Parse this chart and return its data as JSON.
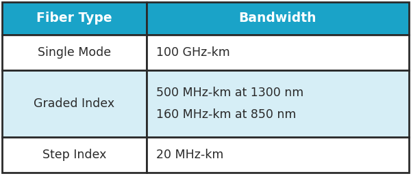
{
  "header_bg": "#1aa3c8",
  "header_text_color": "#ffffff",
  "row1_bg": "#ffffff",
  "row2_bg": "#d6eef6",
  "row3_bg": "#ffffff",
  "border_color": "#2a2a2a",
  "text_color": "#2a2a2a",
  "col1_header": "Fiber Type",
  "col2_header": "Bandwidth",
  "rows": [
    [
      "Single Mode",
      "100 GHz-km"
    ],
    [
      "Graded Index",
      "500 MHz-km at 1300 nm\n160 MHz-km at 850 nm"
    ],
    [
      "Step Index",
      "20 MHz-km"
    ]
  ],
  "col_split": 0.355,
  "header_fontsize": 13.5,
  "body_fontsize": 12.5,
  "fig_width": 6.0,
  "fig_height": 2.58,
  "dpi": 100
}
